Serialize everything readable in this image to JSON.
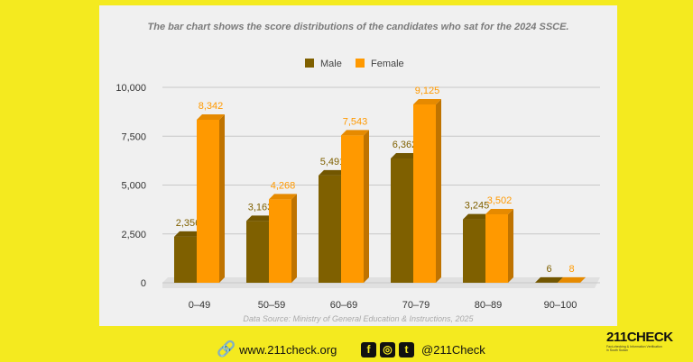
{
  "chart_data": {
    "type": "bar",
    "title": "The bar chart shows the score distributions of the candidates who sat for the 2024 SSCE.",
    "categories": [
      "0–49",
      "50–59",
      "60–69",
      "70–79",
      "80–89",
      "90–100"
    ],
    "series": [
      {
        "name": "Male",
        "color": "#7f6000",
        "values": [
          2356,
          3163,
          5491,
          6362,
          3245,
          6
        ],
        "labels": [
          "2,356",
          "3,163",
          "5,491",
          "6,362",
          "3,245",
          "6"
        ]
      },
      {
        "name": "Female",
        "color": "#ff9900",
        "values": [
          8342,
          4268,
          7543,
          9125,
          3502,
          8
        ],
        "labels": [
          "8,342",
          "4,268",
          "7,543",
          "9,125",
          "3,502",
          "8"
        ]
      }
    ],
    "ylim": [
      0,
      10000
    ],
    "yticks": [
      0,
      2500,
      5000,
      7500,
      10000
    ],
    "ytick_labels": [
      "0",
      "2,500",
      "5,000",
      "7,500",
      "10,000"
    ],
    "legend": "top-center",
    "grid": true,
    "source": "Data Source: Ministry of General Education & Instructions, 2025",
    "xlabel": "",
    "ylabel": ""
  },
  "footer": {
    "website": "www.211check.org",
    "handle": "@211Check",
    "logo": "211CHECK",
    "logo_tagline": "Fact-checking & Information Verification in South Sudan"
  }
}
